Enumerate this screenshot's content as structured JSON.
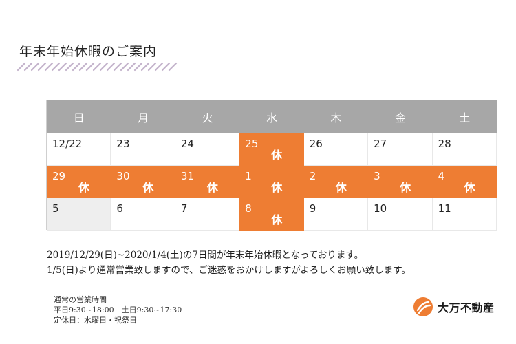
{
  "title": "年末年始休暇のご案内",
  "colors": {
    "accent": "#ee7d33",
    "header": "#a7a7a7",
    "brush": "#b9a6c2"
  },
  "calendar": {
    "weekdays": [
      "日",
      "月",
      "火",
      "水",
      "木",
      "金",
      "土"
    ],
    "holiday_mark": "休",
    "weeks": [
      [
        {
          "date": "12/22",
          "off": false
        },
        {
          "date": "23",
          "off": false
        },
        {
          "date": "24",
          "off": false
        },
        {
          "date": "25",
          "off": true
        },
        {
          "date": "26",
          "off": false
        },
        {
          "date": "27",
          "off": false
        },
        {
          "date": "28",
          "off": false
        }
      ],
      [
        {
          "date": "29",
          "off": true
        },
        {
          "date": "30",
          "off": true
        },
        {
          "date": "31",
          "off": true
        },
        {
          "date": "1",
          "off": true
        },
        {
          "date": "2",
          "off": true
        },
        {
          "date": "3",
          "off": true
        },
        {
          "date": "4",
          "off": true
        }
      ],
      [
        {
          "date": "5",
          "off": false,
          "gray": true
        },
        {
          "date": "6",
          "off": false
        },
        {
          "date": "7",
          "off": false
        },
        {
          "date": "8",
          "off": true
        },
        {
          "date": "9",
          "off": false
        },
        {
          "date": "10",
          "off": false
        },
        {
          "date": "11",
          "off": false
        }
      ]
    ]
  },
  "notice": {
    "line1": "2019/12/29(日)~2020/1/4(土)の7日間が年末年始休暇となっております。",
    "line2": "1/5(日)より通常営業致しますので、ご迷惑をおかけしますがよろしくお願い致します。"
  },
  "hours": {
    "heading": "通常の営業時間",
    "weekday": "平日9:30~18:00　土日9:30~17:30",
    "closed": "定休日：水曜日・祝祭日"
  },
  "logo": {
    "name": "大万不動産",
    "icon": "brand-circle-icon"
  }
}
